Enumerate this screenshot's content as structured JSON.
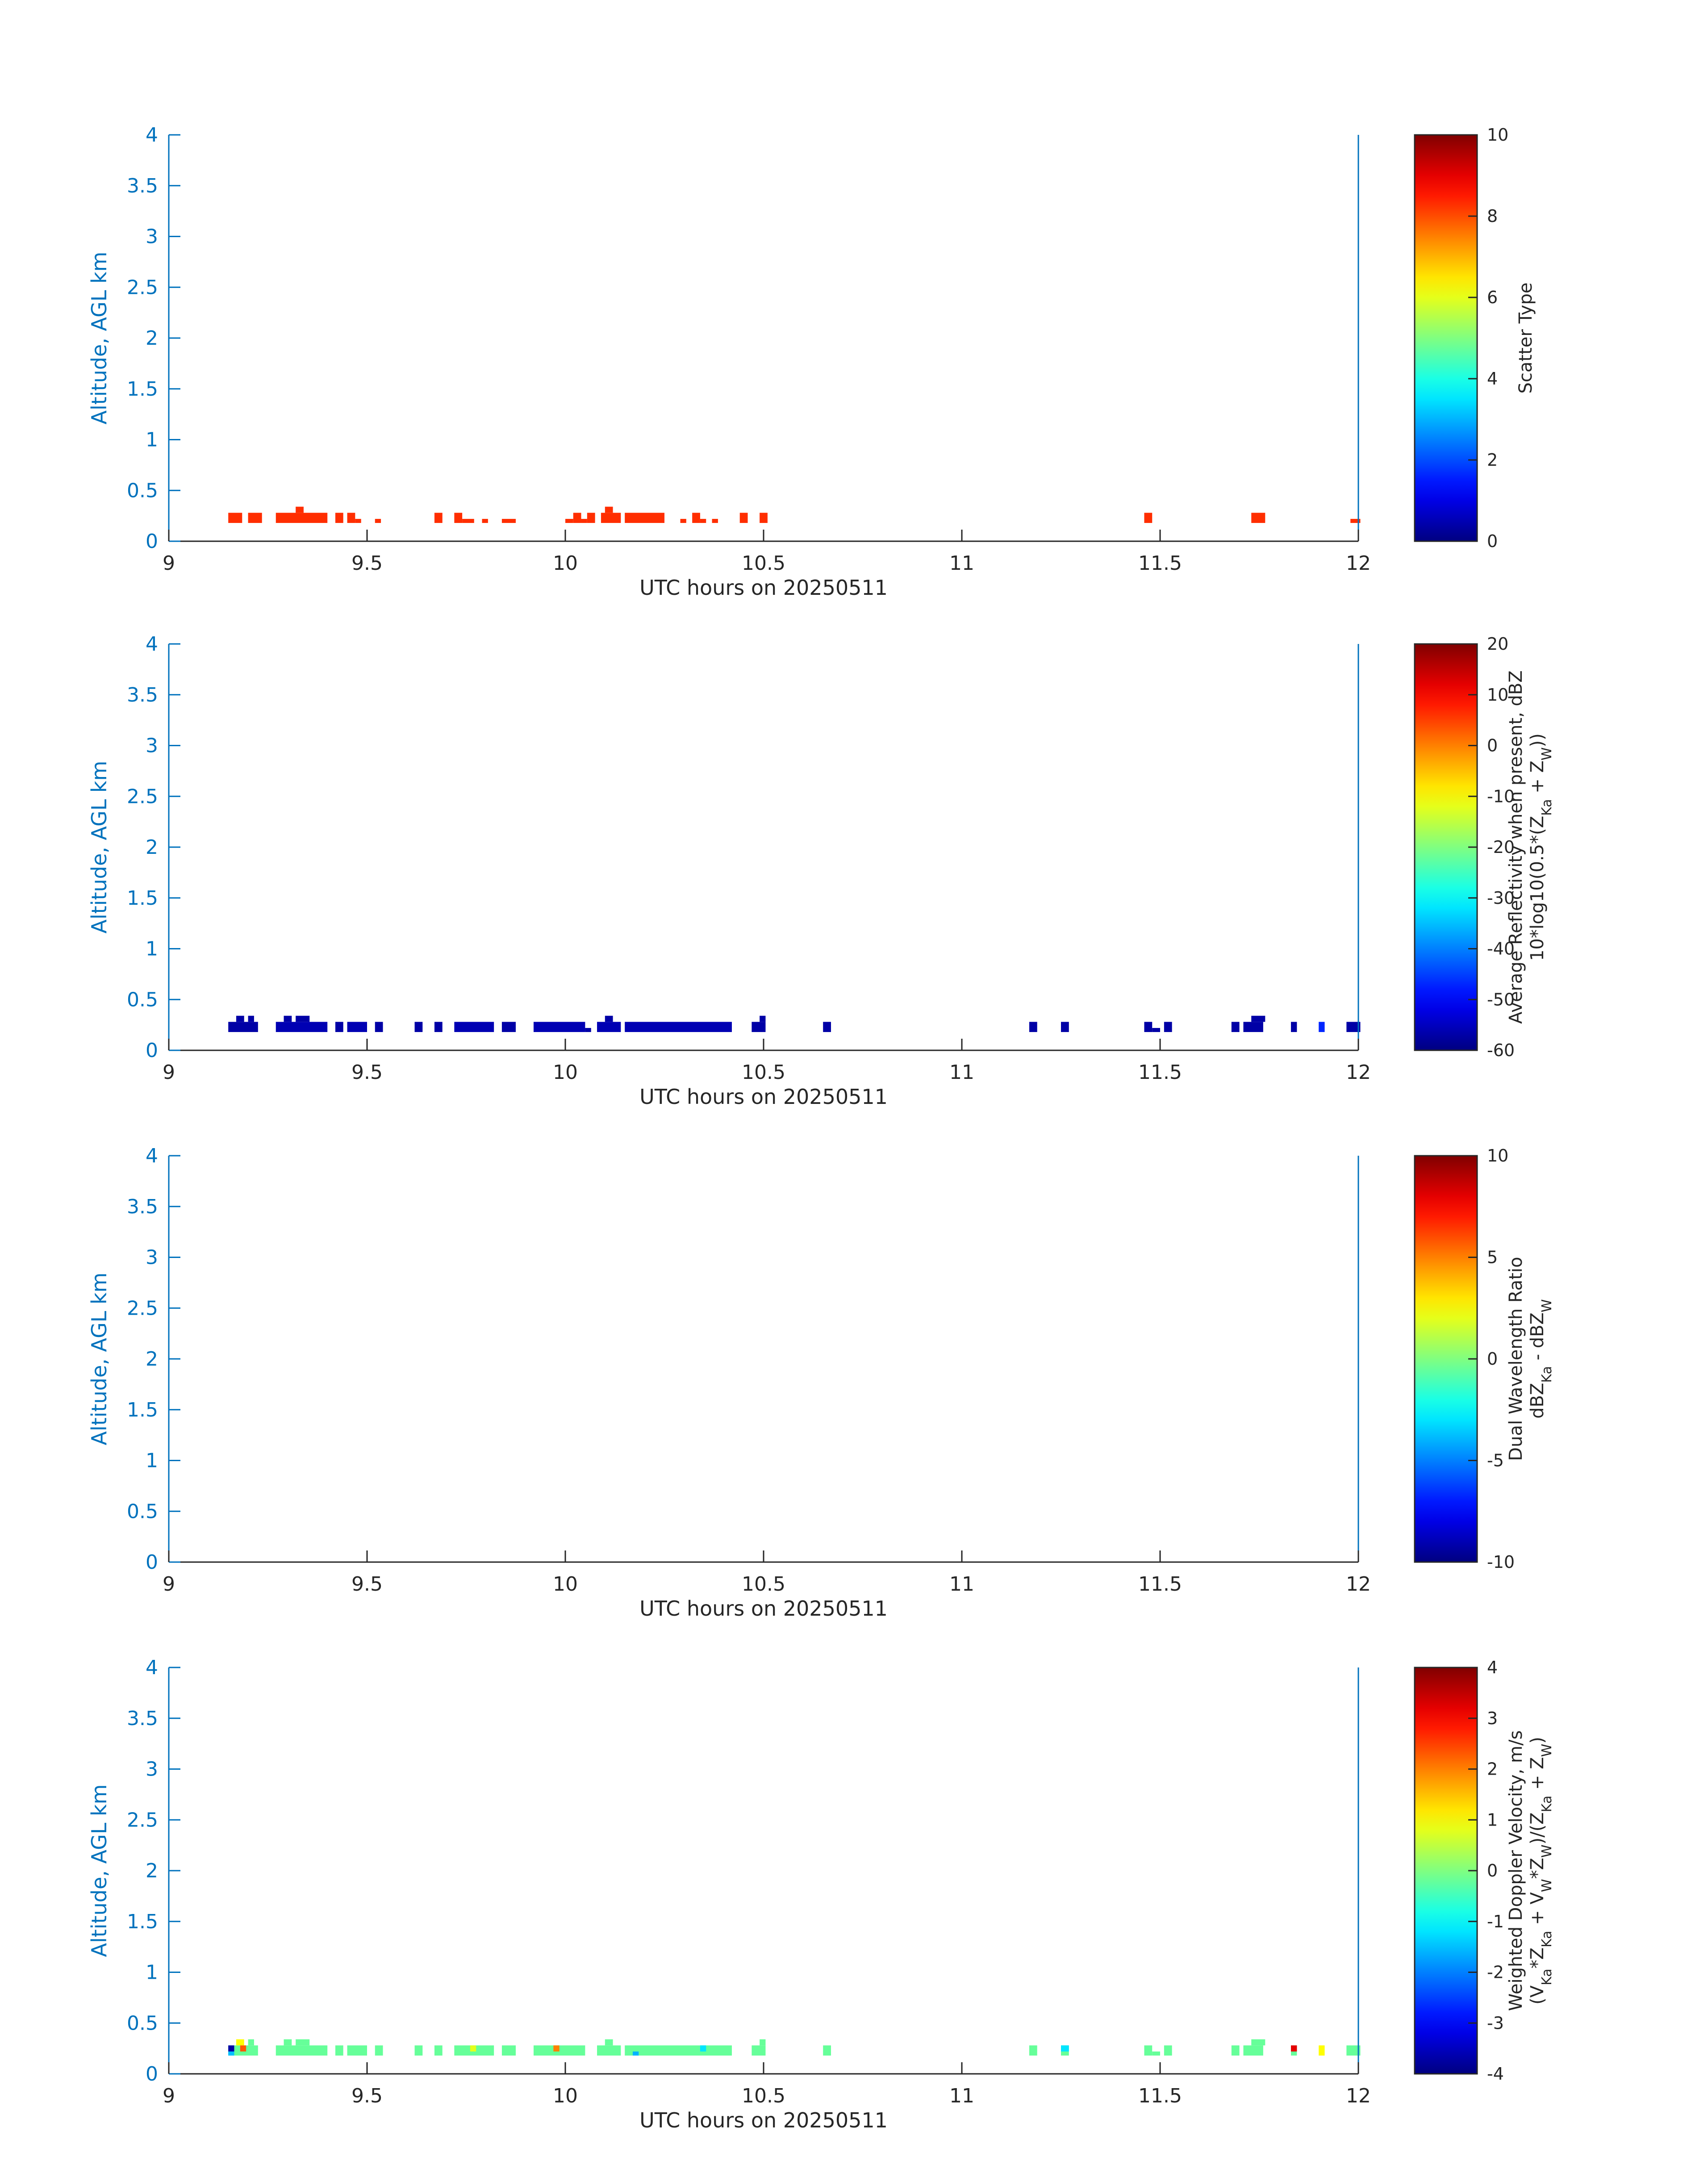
{
  "chart_data": [
    {
      "type": "heatmap",
      "xlabel": "UTC hours on 20250511",
      "ylabel": "Altitude, AGL km",
      "xlim": [
        9,
        12
      ],
      "ylim": [
        0,
        4
      ],
      "xticks": [
        "9",
        "9.5",
        "10",
        "10.5",
        "11",
        "11.5",
        "12"
      ],
      "yticks": [
        "0",
        "0.5",
        "1",
        "1.5",
        "2",
        "2.5",
        "3",
        "3.5",
        "4"
      ],
      "colorbar": {
        "label": [
          "Scatter Type"
        ],
        "range": [
          0,
          10
        ],
        "ticks": [
          "0",
          "2",
          "4",
          "6",
          "8",
          "10"
        ],
        "colormap": "jet"
      },
      "cells": [
        {
          "x": 9.15,
          "w": 0.035,
          "y0": 0.18,
          "y1": 0.28,
          "v": 8.3
        },
        {
          "x": 9.2,
          "w": 0.035,
          "y0": 0.18,
          "y1": 0.28,
          "v": 8.3
        },
        {
          "x": 9.27,
          "w": 0.13,
          "y0": 0.18,
          "y1": 0.28,
          "v": 8.3
        },
        {
          "x": 9.32,
          "w": 0.02,
          "y0": 0.28,
          "y1": 0.34,
          "v": 8.3
        },
        {
          "x": 9.42,
          "w": 0.02,
          "y0": 0.18,
          "y1": 0.28,
          "v": 8.3
        },
        {
          "x": 9.45,
          "w": 0.02,
          "y0": 0.18,
          "y1": 0.28,
          "v": 8.3
        },
        {
          "x": 9.47,
          "w": 0.015,
          "y0": 0.18,
          "y1": 0.22,
          "v": 8.3
        },
        {
          "x": 9.52,
          "w": 0.015,
          "y0": 0.18,
          "y1": 0.22,
          "v": 8.3
        },
        {
          "x": 9.67,
          "w": 0.02,
          "y0": 0.18,
          "y1": 0.28,
          "v": 8.3
        },
        {
          "x": 9.72,
          "w": 0.02,
          "y0": 0.18,
          "y1": 0.28,
          "v": 8.3
        },
        {
          "x": 9.74,
          "w": 0.03,
          "y0": 0.18,
          "y1": 0.22,
          "v": 8.3
        },
        {
          "x": 9.79,
          "w": 0.015,
          "y0": 0.18,
          "y1": 0.22,
          "v": 8.3
        },
        {
          "x": 9.84,
          "w": 0.035,
          "y0": 0.18,
          "y1": 0.22,
          "v": 8.3
        },
        {
          "x": 10.0,
          "w": 0.02,
          "y0": 0.18,
          "y1": 0.22,
          "v": 8.3
        },
        {
          "x": 10.02,
          "w": 0.02,
          "y0": 0.18,
          "y1": 0.28,
          "v": 8.3
        },
        {
          "x": 10.04,
          "w": 0.015,
          "y0": 0.18,
          "y1": 0.22,
          "v": 8.3
        },
        {
          "x": 10.055,
          "w": 0.02,
          "y0": 0.18,
          "y1": 0.28,
          "v": 8.3
        },
        {
          "x": 10.09,
          "w": 0.05,
          "y0": 0.18,
          "y1": 0.28,
          "v": 8.3
        },
        {
          "x": 10.1,
          "w": 0.02,
          "y0": 0.28,
          "y1": 0.34,
          "v": 8.3
        },
        {
          "x": 10.15,
          "w": 0.1,
          "y0": 0.18,
          "y1": 0.28,
          "v": 8.3
        },
        {
          "x": 10.29,
          "w": 0.015,
          "y0": 0.18,
          "y1": 0.22,
          "v": 8.3
        },
        {
          "x": 10.32,
          "w": 0.02,
          "y0": 0.18,
          "y1": 0.28,
          "v": 8.3
        },
        {
          "x": 10.34,
          "w": 0.015,
          "y0": 0.18,
          "y1": 0.22,
          "v": 8.3
        },
        {
          "x": 10.37,
          "w": 0.015,
          "y0": 0.18,
          "y1": 0.22,
          "v": 8.3
        },
        {
          "x": 10.44,
          "w": 0.02,
          "y0": 0.18,
          "y1": 0.28,
          "v": 8.3
        },
        {
          "x": 10.49,
          "w": 0.02,
          "y0": 0.18,
          "y1": 0.28,
          "v": 8.3
        },
        {
          "x": 11.46,
          "w": 0.02,
          "y0": 0.18,
          "y1": 0.28,
          "v": 8.3
        },
        {
          "x": 11.73,
          "w": 0.035,
          "y0": 0.18,
          "y1": 0.28,
          "v": 8.3
        },
        {
          "x": 11.98,
          "w": 0.025,
          "y0": 0.18,
          "y1": 0.22,
          "v": 8.3
        }
      ]
    },
    {
      "type": "heatmap",
      "xlabel": "UTC hours on 20250511",
      "ylabel": "Altitude, AGL km",
      "xlim": [
        9,
        12
      ],
      "ylim": [
        0,
        4
      ],
      "xticks": [
        "9",
        "9.5",
        "10",
        "10.5",
        "11",
        "11.5",
        "12"
      ],
      "yticks": [
        "0",
        "0.5",
        "1",
        "1.5",
        "2",
        "2.5",
        "3",
        "3.5",
        "4"
      ],
      "colorbar": {
        "label": [
          "Average Reflectivity when present, dBZ",
          "10*log10(0.5*(Z",
          "Ka",
          " + Z",
          "W",
          "))"
        ],
        "range": [
          -60,
          20
        ],
        "ticks": [
          "-60",
          "-50",
          "-40",
          "-30",
          "-20",
          "-10",
          "0",
          "10",
          "20"
        ],
        "colormap": "jet"
      },
      "cells": [
        {
          "x": 9.15,
          "w": 0.075,
          "y0": 0.18,
          "y1": 0.28,
          "v": -57
        },
        {
          "x": 9.17,
          "w": 0.02,
          "y0": 0.28,
          "y1": 0.34,
          "v": -57
        },
        {
          "x": 9.2,
          "w": 0.015,
          "y0": 0.28,
          "y1": 0.34,
          "v": -57
        },
        {
          "x": 9.27,
          "w": 0.13,
          "y0": 0.18,
          "y1": 0.28,
          "v": -56
        },
        {
          "x": 9.29,
          "w": 0.02,
          "y0": 0.28,
          "y1": 0.34,
          "v": -57
        },
        {
          "x": 9.32,
          "w": 0.035,
          "y0": 0.28,
          "y1": 0.34,
          "v": -57
        },
        {
          "x": 9.42,
          "w": 0.02,
          "y0": 0.18,
          "y1": 0.28,
          "v": -57
        },
        {
          "x": 9.45,
          "w": 0.05,
          "y0": 0.18,
          "y1": 0.28,
          "v": -56
        },
        {
          "x": 9.52,
          "w": 0.02,
          "y0": 0.18,
          "y1": 0.28,
          "v": -57
        },
        {
          "x": 9.62,
          "w": 0.02,
          "y0": 0.18,
          "y1": 0.28,
          "v": -57
        },
        {
          "x": 9.67,
          "w": 0.02,
          "y0": 0.18,
          "y1": 0.28,
          "v": -57
        },
        {
          "x": 9.72,
          "w": 0.1,
          "y0": 0.18,
          "y1": 0.28,
          "v": -56
        },
        {
          "x": 9.84,
          "w": 0.035,
          "y0": 0.18,
          "y1": 0.28,
          "v": -57
        },
        {
          "x": 9.92,
          "w": 0.13,
          "y0": 0.18,
          "y1": 0.28,
          "v": -56
        },
        {
          "x": 10.05,
          "w": 0.015,
          "y0": 0.18,
          "y1": 0.22,
          "v": -57
        },
        {
          "x": 10.08,
          "w": 0.06,
          "y0": 0.18,
          "y1": 0.28,
          "v": -56
        },
        {
          "x": 10.1,
          "w": 0.02,
          "y0": 0.28,
          "y1": 0.34,
          "v": -57
        },
        {
          "x": 10.15,
          "w": 0.27,
          "y0": 0.18,
          "y1": 0.28,
          "v": -56
        },
        {
          "x": 10.47,
          "w": 0.035,
          "y0": 0.18,
          "y1": 0.28,
          "v": -57
        },
        {
          "x": 10.49,
          "w": 0.015,
          "y0": 0.28,
          "y1": 0.34,
          "v": -57
        },
        {
          "x": 10.65,
          "w": 0.02,
          "y0": 0.18,
          "y1": 0.28,
          "v": -57
        },
        {
          "x": 11.17,
          "w": 0.02,
          "y0": 0.18,
          "y1": 0.28,
          "v": -57
        },
        {
          "x": 11.25,
          "w": 0.02,
          "y0": 0.18,
          "y1": 0.28,
          "v": -57
        },
        {
          "x": 11.46,
          "w": 0.02,
          "y0": 0.18,
          "y1": 0.28,
          "v": -57
        },
        {
          "x": 11.48,
          "w": 0.02,
          "y0": 0.18,
          "y1": 0.22,
          "v": -57
        },
        {
          "x": 11.51,
          "w": 0.02,
          "y0": 0.18,
          "y1": 0.28,
          "v": -57
        },
        {
          "x": 11.68,
          "w": 0.02,
          "y0": 0.18,
          "y1": 0.28,
          "v": -57
        },
        {
          "x": 11.71,
          "w": 0.05,
          "y0": 0.18,
          "y1": 0.28,
          "v": -57
        },
        {
          "x": 11.73,
          "w": 0.035,
          "y0": 0.28,
          "y1": 0.34,
          "v": -57
        },
        {
          "x": 11.83,
          "w": 0.015,
          "y0": 0.18,
          "y1": 0.28,
          "v": -57
        },
        {
          "x": 11.9,
          "w": 0.015,
          "y0": 0.18,
          "y1": 0.28,
          "v": -47
        },
        {
          "x": 11.97,
          "w": 0.035,
          "y0": 0.18,
          "y1": 0.28,
          "v": -57
        }
      ]
    },
    {
      "type": "heatmap",
      "xlabel": "UTC hours on 20250511",
      "ylabel": "Altitude, AGL km",
      "xlim": [
        9,
        12
      ],
      "ylim": [
        0,
        4
      ],
      "xticks": [
        "9",
        "9.5",
        "10",
        "10.5",
        "11",
        "11.5",
        "12"
      ],
      "yticks": [
        "0",
        "0.5",
        "1",
        "1.5",
        "2",
        "2.5",
        "3",
        "3.5",
        "4"
      ],
      "colorbar": {
        "label": [
          "Dual Wavelength Ratio",
          "dBZ",
          "Ka",
          " - dBZ",
          "W"
        ],
        "range": [
          -10,
          10
        ],
        "ticks": [
          "-10",
          "-5",
          "0",
          "5",
          "10"
        ],
        "colormap": "jet"
      },
      "cells": []
    },
    {
      "type": "heatmap",
      "xlabel": "UTC hours on 20250511",
      "ylabel": "Altitude, AGL km",
      "xlim": [
        9,
        12
      ],
      "ylim": [
        0,
        4
      ],
      "xticks": [
        "9",
        "9.5",
        "10",
        "10.5",
        "11",
        "11.5",
        "12"
      ],
      "yticks": [
        "0",
        "0.5",
        "1",
        "1.5",
        "2",
        "2.5",
        "3",
        "3.5",
        "4"
      ],
      "colorbar": {
        "label": [
          "Weighted Doppler Velocity, m/s",
          "(V",
          "Ka",
          "*Z",
          "Ka",
          " + V",
          "W",
          "*Z",
          "W",
          ")/(Z",
          "Ka",
          " + Z",
          "W",
          ")"
        ],
        "range": [
          -4,
          4
        ],
        "ticks": [
          "-4",
          "-3",
          "-2",
          "-1",
          "0",
          "1",
          "2",
          "3",
          "4"
        ],
        "colormap": "jet"
      },
      "cells": [
        {
          "x": 9.15,
          "w": 0.075,
          "y0": 0.18,
          "y1": 0.28,
          "v": -0.2
        },
        {
          "x": 9.15,
          "w": 0.015,
          "y0": 0.22,
          "y1": 0.28,
          "v": -3.7
        },
        {
          "x": 9.15,
          "w": 0.015,
          "y0": 0.18,
          "y1": 0.22,
          "v": -1.5
        },
        {
          "x": 9.17,
          "w": 0.02,
          "y0": 0.28,
          "y1": 0.34,
          "v": 1.0
        },
        {
          "x": 9.18,
          "w": 0.015,
          "y0": 0.22,
          "y1": 0.28,
          "v": 2.3
        },
        {
          "x": 9.2,
          "w": 0.015,
          "y0": 0.28,
          "y1": 0.34,
          "v": -0.2
        },
        {
          "x": 9.27,
          "w": 0.13,
          "y0": 0.18,
          "y1": 0.28,
          "v": -0.2
        },
        {
          "x": 9.29,
          "w": 0.02,
          "y0": 0.28,
          "y1": 0.34,
          "v": -0.2
        },
        {
          "x": 9.32,
          "w": 0.035,
          "y0": 0.28,
          "y1": 0.34,
          "v": -0.2
        },
        {
          "x": 9.42,
          "w": 0.02,
          "y0": 0.18,
          "y1": 0.28,
          "v": -0.2
        },
        {
          "x": 9.45,
          "w": 0.05,
          "y0": 0.18,
          "y1": 0.28,
          "v": -0.2
        },
        {
          "x": 9.52,
          "w": 0.02,
          "y0": 0.18,
          "y1": 0.28,
          "v": -0.2
        },
        {
          "x": 9.62,
          "w": 0.02,
          "y0": 0.18,
          "y1": 0.28,
          "v": -0.2
        },
        {
          "x": 9.67,
          "w": 0.02,
          "y0": 0.18,
          "y1": 0.28,
          "v": -0.2
        },
        {
          "x": 9.72,
          "w": 0.1,
          "y0": 0.18,
          "y1": 0.28,
          "v": -0.2
        },
        {
          "x": 9.76,
          "w": 0.015,
          "y0": 0.22,
          "y1": 0.28,
          "v": 0.8
        },
        {
          "x": 9.84,
          "w": 0.035,
          "y0": 0.18,
          "y1": 0.28,
          "v": -0.2
        },
        {
          "x": 9.92,
          "w": 0.13,
          "y0": 0.18,
          "y1": 0.28,
          "v": -0.2
        },
        {
          "x": 9.97,
          "w": 0.015,
          "y0": 0.22,
          "y1": 0.28,
          "v": 2.0
        },
        {
          "x": 10.08,
          "w": 0.06,
          "y0": 0.18,
          "y1": 0.28,
          "v": -0.2
        },
        {
          "x": 10.1,
          "w": 0.02,
          "y0": 0.28,
          "y1": 0.34,
          "v": -0.2
        },
        {
          "x": 10.15,
          "w": 0.27,
          "y0": 0.18,
          "y1": 0.28,
          "v": -0.2
        },
        {
          "x": 10.17,
          "w": 0.015,
          "y0": 0.18,
          "y1": 0.22,
          "v": -1.6
        },
        {
          "x": 10.34,
          "w": 0.015,
          "y0": 0.22,
          "y1": 0.28,
          "v": -1.2
        },
        {
          "x": 10.47,
          "w": 0.035,
          "y0": 0.18,
          "y1": 0.28,
          "v": -0.2
        },
        {
          "x": 10.49,
          "w": 0.015,
          "y0": 0.28,
          "y1": 0.34,
          "v": -0.2
        },
        {
          "x": 10.65,
          "w": 0.02,
          "y0": 0.18,
          "y1": 0.28,
          "v": -0.2
        },
        {
          "x": 11.17,
          "w": 0.02,
          "y0": 0.18,
          "y1": 0.28,
          "v": -0.2
        },
        {
          "x": 11.25,
          "w": 0.02,
          "y0": 0.18,
          "y1": 0.28,
          "v": -0.2
        },
        {
          "x": 11.25,
          "w": 0.02,
          "y0": 0.22,
          "y1": 0.28,
          "v": -1.2
        },
        {
          "x": 11.46,
          "w": 0.02,
          "y0": 0.18,
          "y1": 0.28,
          "v": -0.2
        },
        {
          "x": 11.48,
          "w": 0.02,
          "y0": 0.18,
          "y1": 0.22,
          "v": -0.2
        },
        {
          "x": 11.51,
          "w": 0.02,
          "y0": 0.18,
          "y1": 0.28,
          "v": -0.2
        },
        {
          "x": 11.68,
          "w": 0.02,
          "y0": 0.18,
          "y1": 0.28,
          "v": -0.2
        },
        {
          "x": 11.71,
          "w": 0.05,
          "y0": 0.18,
          "y1": 0.28,
          "v": -0.2
        },
        {
          "x": 11.73,
          "w": 0.035,
          "y0": 0.28,
          "y1": 0.34,
          "v": -0.2
        },
        {
          "x": 11.83,
          "w": 0.015,
          "y0": 0.18,
          "y1": 0.28,
          "v": -0.2
        },
        {
          "x": 11.83,
          "w": 0.015,
          "y0": 0.22,
          "y1": 0.28,
          "v": 3.2
        },
        {
          "x": 11.9,
          "w": 0.015,
          "y0": 0.18,
          "y1": 0.28,
          "v": 1.0
        },
        {
          "x": 11.97,
          "w": 0.035,
          "y0": 0.18,
          "y1": 0.28,
          "v": -0.2
        }
      ]
    }
  ]
}
